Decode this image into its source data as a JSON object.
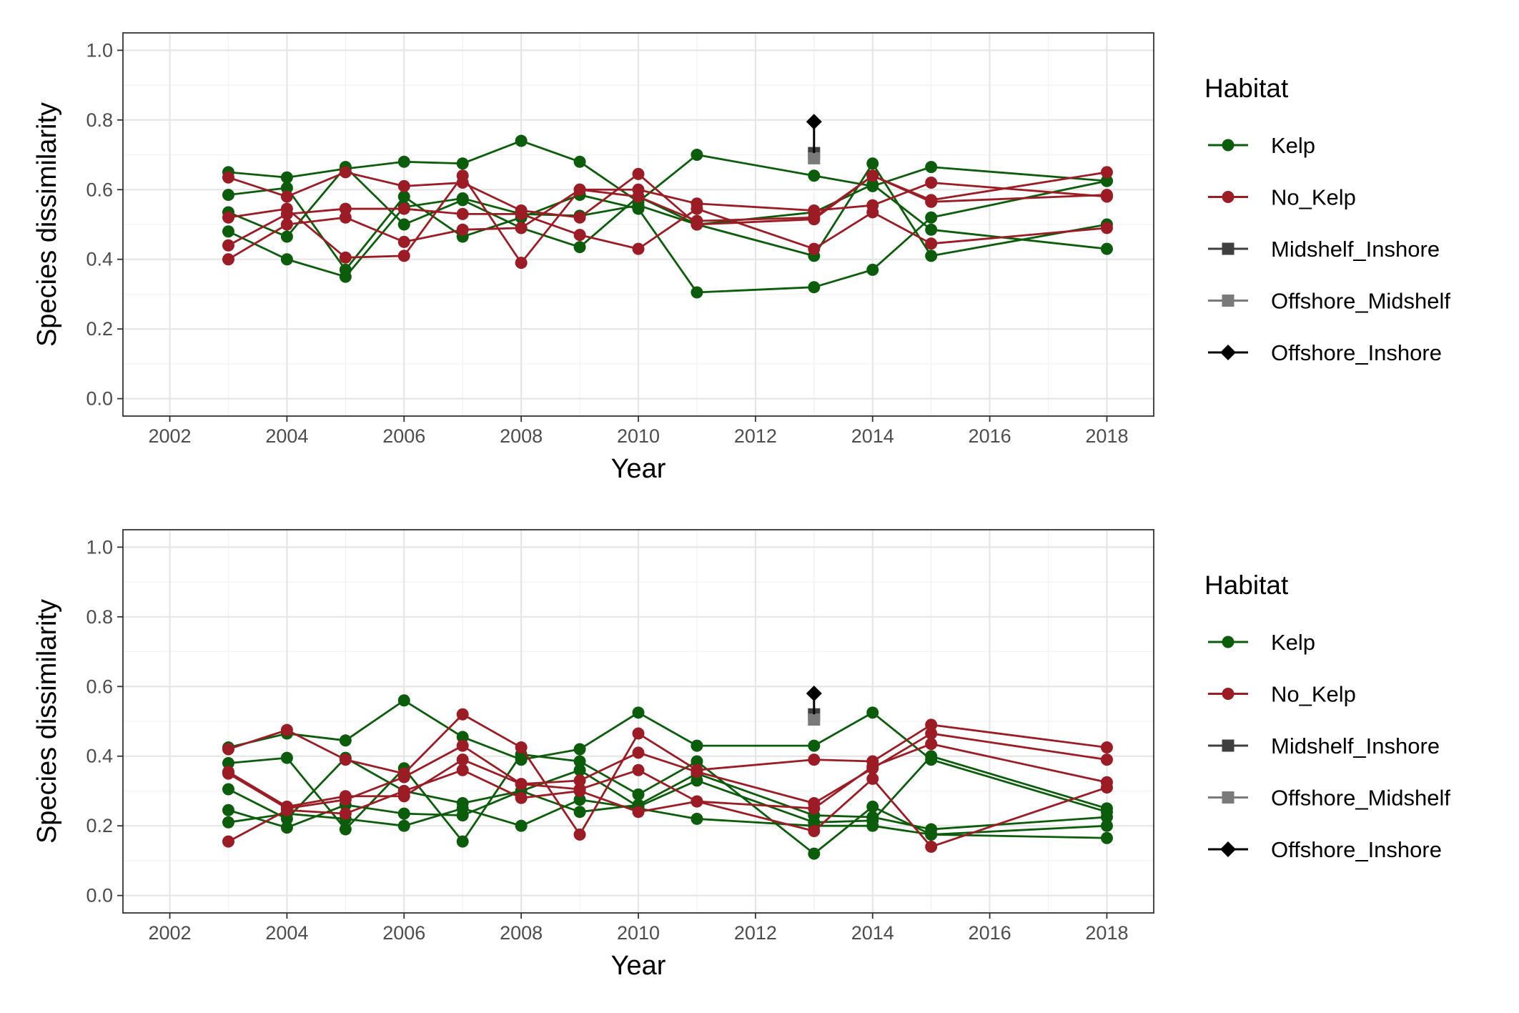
{
  "chart_data": [
    {
      "type": "line",
      "title": "",
      "xlabel": "Year",
      "ylabel": "Species dissimilarity",
      "xlim": [
        2001.2,
        2018.8
      ],
      "ylim": [
        -0.05,
        1.05
      ],
      "x_ticks": [
        2002,
        2004,
        2006,
        2008,
        2010,
        2012,
        2014,
        2016,
        2018
      ],
      "y_ticks": [
        0.0,
        0.2,
        0.4,
        0.6,
        0.8,
        1.0
      ],
      "grid": true,
      "legend": {
        "title": "Habitat",
        "position": "right",
        "entries": [
          {
            "label": "Kelp",
            "color": "#0b5c0b",
            "marker": "circle"
          },
          {
            "label": "No_Kelp",
            "color": "#9b1c24",
            "marker": "circle"
          },
          {
            "label": "Midshelf_Inshore",
            "color": "#3f3f3f",
            "marker": "square"
          },
          {
            "label": "Offshore_Midshelf",
            "color": "#7a7a7a",
            "marker": "square"
          },
          {
            "label": "Offshore_Inshore",
            "color": "#000000",
            "marker": "diamond"
          }
        ]
      },
      "series": [
        {
          "habitat": "Kelp",
          "x": [
            2003,
            2004,
            2005,
            2006,
            2007,
            2008,
            2009,
            2010,
            2011,
            2013,
            2014,
            2015,
            2018
          ],
          "y": [
            0.65,
            0.635,
            0.66,
            0.68,
            0.675,
            0.74,
            0.68,
            0.565,
            0.7,
            0.64,
            0.61,
            0.665,
            0.625
          ]
        },
        {
          "habitat": "Kelp",
          "x": [
            2003,
            2004,
            2005,
            2006,
            2007,
            2008,
            2009,
            2010,
            2011,
            2013,
            2014,
            2015,
            2018
          ],
          "y": [
            0.585,
            0.605,
            0.37,
            0.58,
            0.465,
            0.52,
            0.585,
            0.545,
            0.305,
            0.32,
            0.37,
            0.52,
            0.625
          ]
        },
        {
          "habitat": "Kelp",
          "x": [
            2003,
            2004,
            2005,
            2006,
            2007,
            2008,
            2009,
            2010,
            2011,
            2013,
            2014,
            2015,
            2018
          ],
          "y": [
            0.535,
            0.465,
            0.665,
            0.5,
            0.57,
            0.49,
            0.435,
            0.58,
            0.5,
            0.41,
            0.675,
            0.41,
            0.5
          ]
        },
        {
          "habitat": "Kelp",
          "x": [
            2003,
            2004,
            2005,
            2006,
            2007,
            2008,
            2009,
            2010,
            2011,
            2013,
            2014,
            2015,
            2018
          ],
          "y": [
            0.48,
            0.4,
            0.35,
            0.55,
            0.575,
            0.53,
            0.525,
            0.555,
            0.5,
            0.535,
            0.615,
            0.485,
            0.43
          ]
        },
        {
          "habitat": "No_Kelp",
          "x": [
            2003,
            2004,
            2005,
            2006,
            2007,
            2008,
            2009,
            2010,
            2011,
            2013,
            2014,
            2015,
            2018
          ],
          "y": [
            0.635,
            0.58,
            0.65,
            0.61,
            0.62,
            0.54,
            0.52,
            0.645,
            0.5,
            0.515,
            0.64,
            0.565,
            0.585
          ]
        },
        {
          "habitat": "No_Kelp",
          "x": [
            2003,
            2004,
            2005,
            2006,
            2007,
            2008,
            2009,
            2010,
            2011,
            2013,
            2014,
            2015,
            2018
          ],
          "y": [
            0.52,
            0.545,
            0.405,
            0.41,
            0.64,
            0.39,
            0.6,
            0.6,
            0.56,
            0.54,
            0.555,
            0.62,
            0.58
          ]
        },
        {
          "habitat": "No_Kelp",
          "x": [
            2003,
            2004,
            2005,
            2006,
            2007,
            2008,
            2009,
            2010,
            2011,
            2013,
            2014,
            2015,
            2018
          ],
          "y": [
            0.44,
            0.53,
            0.545,
            0.545,
            0.53,
            0.53,
            0.47,
            0.43,
            0.545,
            0.43,
            0.535,
            0.445,
            0.49
          ]
        },
        {
          "habitat": "No_Kelp",
          "x": [
            2003,
            2004,
            2005,
            2006,
            2007,
            2008,
            2009,
            2010,
            2011,
            2013,
            2014,
            2015,
            2018
          ],
          "y": [
            0.4,
            0.5,
            0.52,
            0.45,
            0.485,
            0.49,
            0.6,
            0.58,
            0.51,
            0.52,
            0.64,
            0.57,
            0.65
          ]
        },
        {
          "habitat": "Midshelf_Inshore",
          "x": [
            2013
          ],
          "y": [
            0.705
          ]
        },
        {
          "habitat": "Offshore_Midshelf",
          "x": [
            2013
          ],
          "y": [
            0.69
          ]
        },
        {
          "habitat": "Offshore_Inshore",
          "x": [
            2013
          ],
          "y": [
            0.795
          ]
        }
      ],
      "error_bars": [
        {
          "x": 2013,
          "y_low": 0.705,
          "y_high": 0.795,
          "color": "#000000"
        }
      ]
    },
    {
      "type": "line",
      "title": "",
      "xlabel": "Year",
      "ylabel": "Species dissimilarity",
      "xlim": [
        2001.2,
        2018.8
      ],
      "ylim": [
        -0.05,
        1.05
      ],
      "x_ticks": [
        2002,
        2004,
        2006,
        2008,
        2010,
        2012,
        2014,
        2016,
        2018
      ],
      "y_ticks": [
        0.0,
        0.2,
        0.4,
        0.6,
        0.8,
        1.0
      ],
      "grid": true,
      "legend": {
        "title": "Habitat",
        "position": "right",
        "entries": [
          {
            "label": "Kelp",
            "color": "#0b5c0b",
            "marker": "circle"
          },
          {
            "label": "No_Kelp",
            "color": "#9b1c24",
            "marker": "circle"
          },
          {
            "label": "Midshelf_Inshore",
            "color": "#3f3f3f",
            "marker": "square"
          },
          {
            "label": "Offshore_Midshelf",
            "color": "#7a7a7a",
            "marker": "square"
          },
          {
            "label": "Offshore_Inshore",
            "color": "#000000",
            "marker": "diamond"
          }
        ]
      },
      "series": [
        {
          "habitat": "Kelp",
          "x": [
            2003,
            2004,
            2005,
            2006,
            2007,
            2008,
            2009,
            2010,
            2011,
            2013,
            2014,
            2015,
            2018
          ],
          "y": [
            0.425,
            0.465,
            0.445,
            0.56,
            0.455,
            0.39,
            0.42,
            0.525,
            0.43,
            0.43,
            0.525,
            0.39,
            0.24
          ]
        },
        {
          "habitat": "Kelp",
          "x": [
            2003,
            2004,
            2005,
            2006,
            2007,
            2008,
            2009,
            2010,
            2011,
            2013,
            2014,
            2015,
            2018
          ],
          "y": [
            0.38,
            0.395,
            0.19,
            0.365,
            0.155,
            0.405,
            0.385,
            0.29,
            0.385,
            0.12,
            0.255,
            0.175,
            0.165
          ]
        },
        {
          "habitat": "Kelp",
          "x": [
            2003,
            2004,
            2005,
            2006,
            2007,
            2008,
            2009,
            2010,
            2011,
            2013,
            2014,
            2015,
            2018
          ],
          "y": [
            0.305,
            0.22,
            0.395,
            0.3,
            0.265,
            0.3,
            0.36,
            0.255,
            0.33,
            0.21,
            0.215,
            0.4,
            0.25
          ]
        },
        {
          "habitat": "Kelp",
          "x": [
            2003,
            2004,
            2005,
            2006,
            2007,
            2008,
            2009,
            2010,
            2011,
            2013,
            2014,
            2015,
            2018
          ],
          "y": [
            0.245,
            0.195,
            0.26,
            0.235,
            0.23,
            0.3,
            0.24,
            0.26,
            0.35,
            0.23,
            0.225,
            0.19,
            0.225
          ]
        },
        {
          "habitat": "Kelp",
          "x": [
            2003,
            2004,
            2005,
            2006,
            2007,
            2008,
            2009,
            2010,
            2011,
            2013,
            2014,
            2015,
            2018
          ],
          "y": [
            0.21,
            0.235,
            0.22,
            0.2,
            0.25,
            0.2,
            0.275,
            0.25,
            0.22,
            0.2,
            0.2,
            0.175,
            0.2
          ]
        },
        {
          "habitat": "No_Kelp",
          "x": [
            2003,
            2004,
            2005,
            2006,
            2007,
            2008,
            2009,
            2010,
            2011,
            2013,
            2014,
            2015,
            2018
          ],
          "y": [
            0.42,
            0.475,
            0.39,
            0.35,
            0.52,
            0.425,
            0.175,
            0.465,
            0.36,
            0.39,
            0.385,
            0.49,
            0.425
          ]
        },
        {
          "habitat": "No_Kelp",
          "x": [
            2003,
            2004,
            2005,
            2006,
            2007,
            2008,
            2009,
            2010,
            2011,
            2013,
            2014,
            2015,
            2018
          ],
          "y": [
            0.355,
            0.255,
            0.285,
            0.285,
            0.39,
            0.32,
            0.33,
            0.41,
            0.355,
            0.265,
            0.365,
            0.465,
            0.39
          ]
        },
        {
          "habitat": "No_Kelp",
          "x": [
            2003,
            2004,
            2005,
            2006,
            2007,
            2008,
            2009,
            2010,
            2011,
            2013,
            2014,
            2015,
            2018
          ],
          "y": [
            0.155,
            0.245,
            0.235,
            0.3,
            0.36,
            0.28,
            0.3,
            0.24,
            0.27,
            0.185,
            0.335,
            0.14,
            0.31
          ]
        },
        {
          "habitat": "No_Kelp",
          "x": [
            2003,
            2004,
            2005,
            2006,
            2007,
            2008,
            2009,
            2010,
            2011,
            2013,
            2014,
            2015,
            2018
          ],
          "y": [
            0.35,
            0.25,
            0.275,
            0.34,
            0.43,
            0.32,
            0.305,
            0.36,
            0.27,
            0.25,
            0.37,
            0.435,
            0.325
          ]
        },
        {
          "habitat": "Midshelf_Inshore",
          "x": [
            2013
          ],
          "y": [
            0.52
          ]
        },
        {
          "habitat": "Offshore_Midshelf",
          "x": [
            2013
          ],
          "y": [
            0.505
          ]
        },
        {
          "habitat": "Offshore_Inshore",
          "x": [
            2013
          ],
          "y": [
            0.58
          ]
        }
      ],
      "error_bars": [
        {
          "x": 2013,
          "y_low": 0.52,
          "y_high": 0.58,
          "color": "#000000"
        }
      ]
    }
  ]
}
